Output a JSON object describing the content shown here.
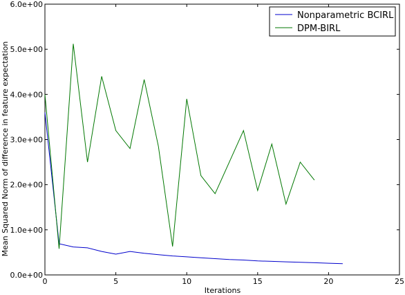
{
  "chart_data": {
    "type": "line",
    "title": "",
    "xlabel": "Iterations",
    "ylabel": "Mean Squared Norm of difference in feature expectation",
    "xlim": [
      0,
      25
    ],
    "ylim": [
      0,
      6
    ],
    "xticks": [
      0,
      5,
      10,
      15,
      20,
      25
    ],
    "yticks": [
      0,
      1,
      2,
      3,
      4,
      5,
      6
    ],
    "xtick_labels": [
      "0",
      "5",
      "10",
      "15",
      "20",
      "25"
    ],
    "ytick_labels": [
      "0.0e+00",
      "1.0e+00",
      "2.0e+00",
      "3.0e+00",
      "4.0e+00",
      "5.0e+00",
      "6.0e+00"
    ],
    "grid": false,
    "legend_position": "top-right",
    "series": [
      {
        "name": "Nonparametric BCIRL",
        "color": "#0000cc",
        "x": [
          0,
          1,
          2,
          3,
          4,
          5,
          6,
          7,
          8,
          9,
          10,
          11,
          12,
          13,
          14,
          15,
          16,
          17,
          18,
          19,
          20,
          21
        ],
        "y": [
          3.6,
          0.69,
          0.62,
          0.6,
          0.52,
          0.46,
          0.52,
          0.48,
          0.45,
          0.42,
          0.4,
          0.38,
          0.36,
          0.34,
          0.33,
          0.31,
          0.3,
          0.29,
          0.28,
          0.27,
          0.26,
          0.25
        ]
      },
      {
        "name": "DPM-BIRL",
        "color": "#007700",
        "x": [
          0,
          1,
          2,
          3,
          4,
          5,
          6,
          7,
          8,
          9,
          10,
          11,
          12,
          13,
          14,
          15,
          16,
          17,
          18,
          19
        ],
        "y": [
          4.0,
          0.58,
          5.12,
          2.5,
          4.4,
          3.2,
          2.8,
          4.33,
          2.85,
          0.63,
          3.9,
          2.2,
          1.8,
          2.5,
          3.2,
          1.87,
          2.9,
          1.57,
          2.5,
          2.1
        ]
      }
    ]
  }
}
